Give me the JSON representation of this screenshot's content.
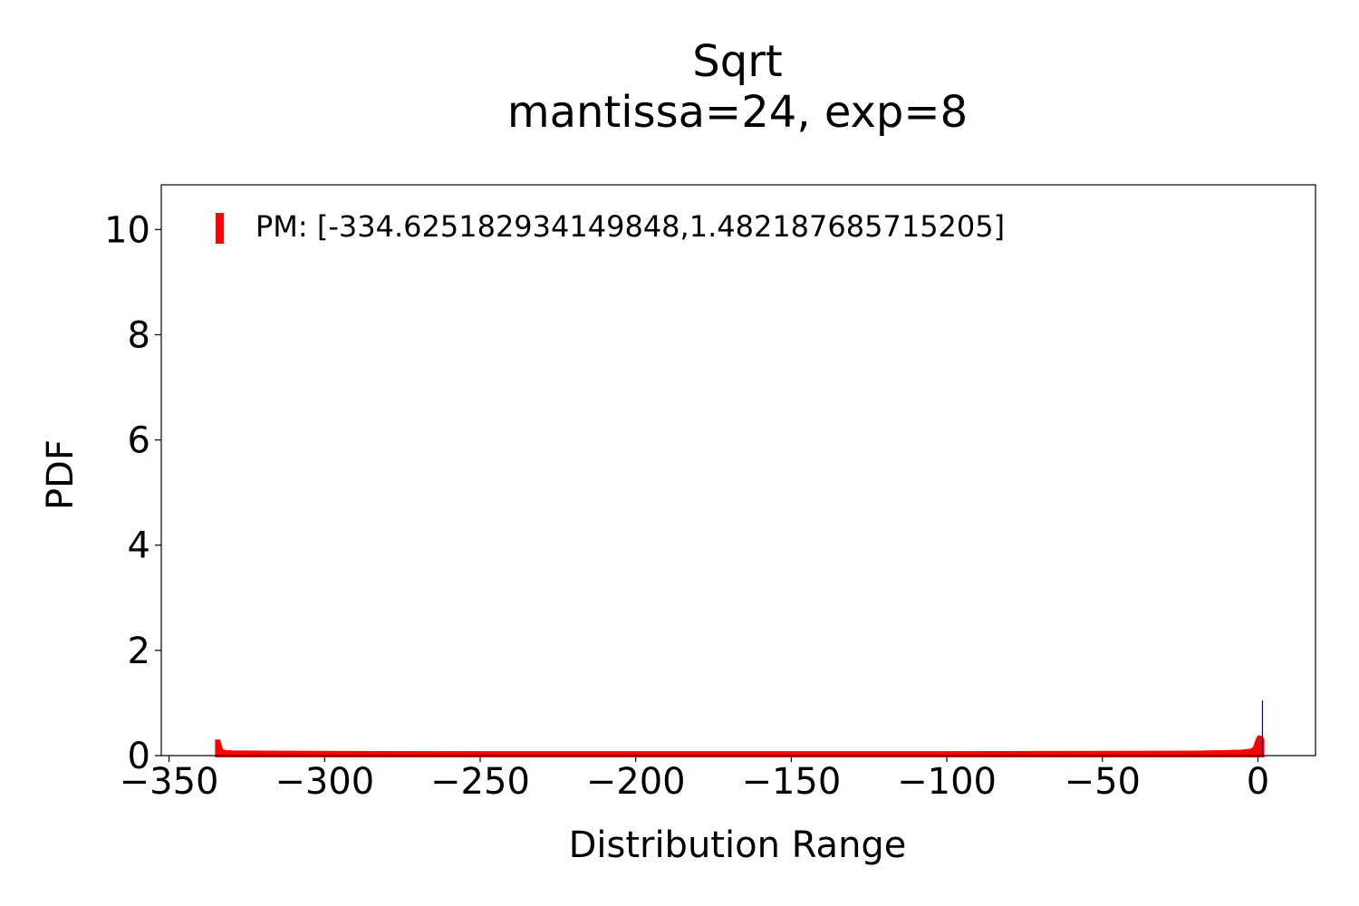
{
  "chart_data": {
    "type": "area",
    "title": "Sqrt",
    "subtitle": "mantissa=24, exp=8",
    "xlabel": "Distribution Range",
    "ylabel": "PDF",
    "xlim": [
      -352.5,
      18.5
    ],
    "ylim": [
      0,
      10.85
    ],
    "xticks": [
      -350,
      -300,
      -250,
      -200,
      -150,
      -100,
      -50,
      0
    ],
    "xtick_labels": [
      "−350",
      "−300",
      "−250",
      "−200",
      "−150",
      "−100",
      "−50",
      "0"
    ],
    "yticks": [
      0,
      2,
      4,
      6,
      8,
      10
    ],
    "ytick_labels": [
      "0",
      "2",
      "4",
      "6",
      "8",
      "10"
    ],
    "grid": false,
    "legend": {
      "placement": "top-left",
      "label": "PM: [-334.625182934149848,1.482187685715205]",
      "color": "#ff0000"
    },
    "series": [
      {
        "name": "PM: [-334.625182934149848,1.482187685715205]",
        "color": "#ff0000",
        "x": [
          -334.63,
          -334.0,
          -333.2,
          -332.0,
          -330,
          -320,
          -300,
          -250,
          -200,
          -150,
          -100,
          -50,
          -20,
          -10,
          -5,
          -2,
          -1,
          -0.5,
          0,
          0.3,
          0.6,
          0.9,
          1.2,
          1.48
        ],
        "y": [
          0.27,
          0.27,
          0.1,
          0.07,
          0.065,
          0.06,
          0.055,
          0.05,
          0.05,
          0.05,
          0.05,
          0.055,
          0.06,
          0.07,
          0.08,
          0.1,
          0.15,
          0.25,
          0.32,
          0.35,
          0.35,
          0.34,
          0.33,
          0.3
        ]
      },
      {
        "name": "",
        "color": "#00008b",
        "x": [
          1.45
        ],
        "y": [
          1.05
        ]
      }
    ]
  }
}
